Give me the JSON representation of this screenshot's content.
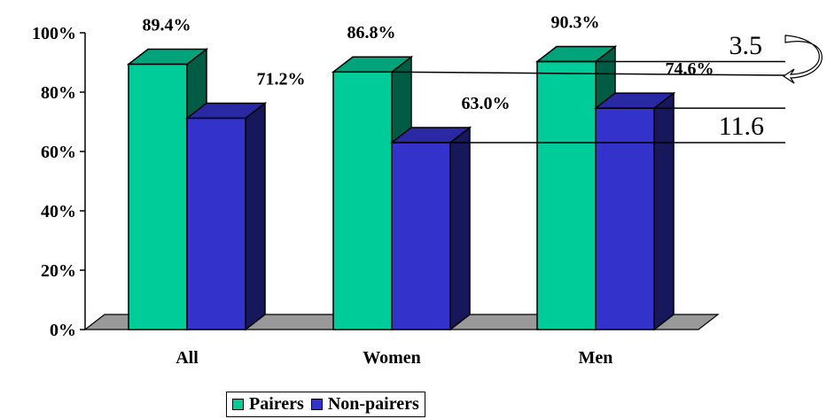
{
  "chart_data": {
    "type": "bar",
    "categories": [
      "All",
      "Women",
      "Men"
    ],
    "series": [
      {
        "name": "Pairers",
        "values": [
          89.4,
          86.8,
          90.3
        ],
        "labels": [
          "89.4%",
          "86.8%",
          "90.3%"
        ],
        "color": "#00CC99"
      },
      {
        "name": "Non-pairers",
        "values": [
          71.2,
          63.0,
          74.6
        ],
        "labels": [
          "71.2%",
          "63.0%",
          "74.6%"
        ],
        "color": "#3333CC"
      }
    ],
    "ylim": [
      0,
      100
    ],
    "yticks": [
      "0%",
      "20%",
      "40%",
      "60%",
      "80%",
      "100%"
    ],
    "grid": false,
    "legend_position": "bottom",
    "annotations": [
      {
        "text": "3.5",
        "between": [
          86.8,
          90.3
        ]
      },
      {
        "text": "11.6",
        "between": [
          63.0,
          74.6
        ]
      }
    ]
  }
}
